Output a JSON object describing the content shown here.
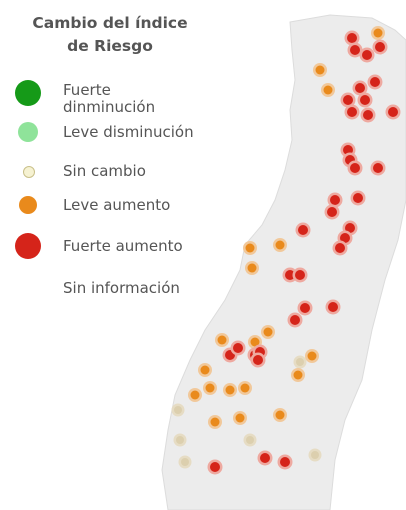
{
  "legend": {
    "title": "Cambio del índice de Riesgo",
    "items": [
      {
        "label": "Fuerte dinminución",
        "color": "#159a18"
      },
      {
        "label": "Leve disminución",
        "color": "#8fe39a"
      },
      {
        "label": "Sin cambio",
        "color": "#f6f2d2"
      },
      {
        "label": "Leve aumento",
        "color": "#e98a1c"
      },
      {
        "label": "Fuerte aumento",
        "color": "#d5241a"
      },
      {
        "label": "Sin información",
        "color": null
      }
    ]
  }
}
